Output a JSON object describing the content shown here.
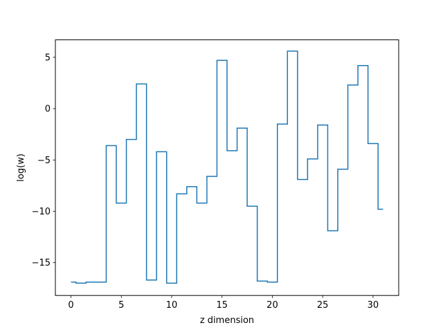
{
  "chart_data": {
    "type": "line",
    "drawstyle": "steps-mid",
    "title": "",
    "xlabel": "z dimension",
    "ylabel": "log(w)",
    "xlim": [
      -1.55,
      32.55
    ],
    "ylim": [
      -18.2,
      6.7
    ],
    "xticks": [
      0,
      5,
      10,
      15,
      20,
      25,
      30
    ],
    "yticks": [
      -15,
      -10,
      -5,
      0,
      5
    ],
    "grid": false,
    "legend": "none",
    "series": [
      {
        "color": "#1f77b4",
        "x": [
          0,
          1,
          2,
          3,
          4,
          5,
          6,
          7,
          8,
          9,
          10,
          11,
          12,
          13,
          14,
          15,
          16,
          17,
          18,
          19,
          20,
          21,
          22,
          23,
          24,
          25,
          26,
          27,
          28,
          29,
          30,
          31
        ],
        "y": [
          -16.9,
          -17.0,
          -16.9,
          -16.9,
          -3.6,
          -9.2,
          -3.0,
          2.4,
          -16.7,
          -4.2,
          -17.0,
          -8.3,
          -7.6,
          -9.2,
          -6.6,
          4.7,
          -4.1,
          -1.9,
          -9.5,
          -16.8,
          -16.9,
          -1.5,
          5.6,
          -6.9,
          -4.9,
          -1.6,
          -11.9,
          -5.9,
          2.3,
          4.2,
          -3.4,
          -9.8
        ]
      }
    ]
  }
}
